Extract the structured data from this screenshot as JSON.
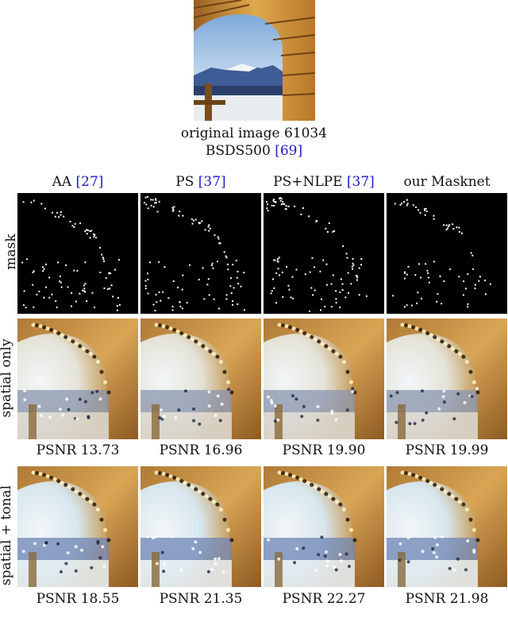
{
  "original": {
    "caption_line1": "original image 61034",
    "caption_line2_text": "BSDS500 ",
    "caption_line2_ref": "[69]"
  },
  "columns": [
    {
      "name": "AA ",
      "ref": "[27]"
    },
    {
      "name": "PS ",
      "ref": "[37]"
    },
    {
      "name": "PS+NLPE ",
      "ref": "[37]"
    },
    {
      "name": "our Masknet",
      "ref": ""
    }
  ],
  "rows": {
    "mask": "mask",
    "spatial": "spatial only",
    "tonal": "spatial + tonal"
  },
  "psnr_spatial": [
    "PSNR 13.73",
    "PSNR 16.96",
    "PSNR 19.90",
    "PSNR 19.99"
  ],
  "psnr_tonal": [
    "PSNR 18.55",
    "PSNR 21.35",
    "PSNR 22.27",
    "PSNR 21.98"
  ],
  "colors": {
    "ref_link": "#1a1acc",
    "wood": "#c8892e",
    "sky": "#dfe8ee",
    "mountain": "#4f6ea6"
  }
}
